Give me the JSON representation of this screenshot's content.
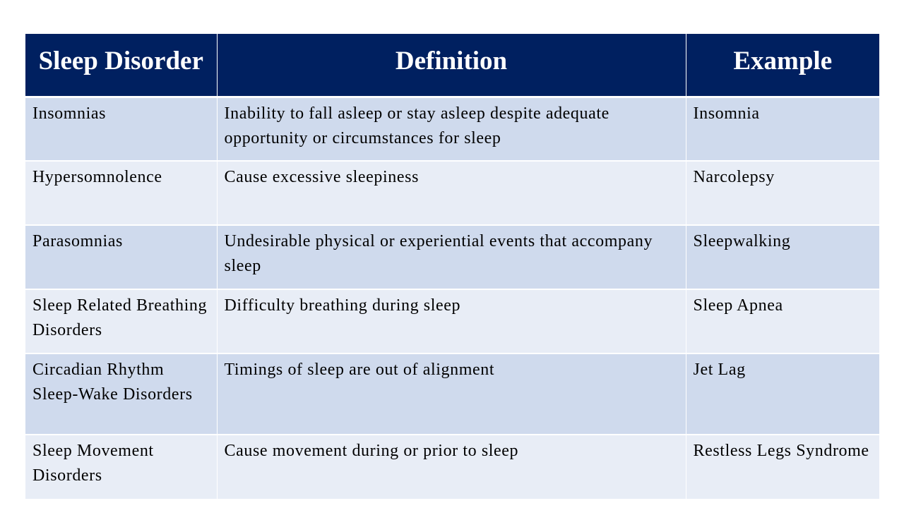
{
  "table": {
    "headers": [
      "Sleep Disorder",
      "Definition",
      "Example"
    ],
    "rows": [
      {
        "disorder": "Insomnias",
        "definition": "Inability to fall asleep or stay asleep despite adequate opportunity or circumstances for sleep",
        "example": "Insomnia"
      },
      {
        "disorder": "Hypersomnolence",
        "definition": "Cause excessive sleepiness",
        "example": "Narcolepsy"
      },
      {
        "disorder": "Parasomnias",
        "definition": "Undesirable physical or experiential events that accompany sleep",
        "example": "Sleepwalking"
      },
      {
        "disorder": "Sleep Related Breathing Disorders",
        "definition": "Difficulty breathing during sleep",
        "example": "Sleep Apnea"
      },
      {
        "disorder": "Circadian Rhythm Sleep-Wake Disorders",
        "definition": "Timings of sleep are out of alignment",
        "example": "Jet Lag"
      },
      {
        "disorder": "Sleep Movement Disorders",
        "definition": "Cause movement during or prior to sleep",
        "example": "Restless Legs Syndrome"
      }
    ]
  },
  "colors": {
    "header_bg": "#002060",
    "row_odd_bg": "#cfdaed",
    "row_even_bg": "#e8edf6"
  }
}
